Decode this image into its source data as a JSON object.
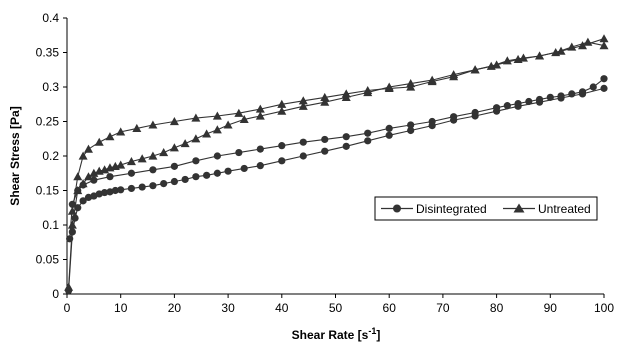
{
  "chart_data": {
    "type": "line",
    "xlabel": "Shear Rate [s",
    "xlabel_sup": "-1",
    "xlabel_end": "]",
    "ylabel": "Shear Stress [Pa]",
    "xlim": [
      0,
      100
    ],
    "ylim": [
      0,
      0.4
    ],
    "xticks": [
      "0",
      "10",
      "20",
      "30",
      "40",
      "50",
      "60",
      "70",
      "80",
      "90",
      "100"
    ],
    "yticks": [
      "0",
      "0.05",
      "0.1",
      "0.15",
      "0.2",
      "0.25",
      "0.3",
      "0.35",
      "0.4"
    ],
    "legend_position": "right-middle",
    "series": [
      {
        "name": "Disintegrated",
        "marker": "circle",
        "color": "#333333",
        "up": {
          "x": [
            0.3,
            1,
            1.5,
            2,
            3,
            4,
            5,
            6,
            7,
            8,
            9,
            10,
            12,
            14,
            16,
            18,
            20,
            22,
            24,
            26,
            28,
            30,
            33,
            36,
            40,
            44,
            48,
            52,
            56,
            60,
            64,
            68,
            72,
            76,
            80,
            84,
            88,
            92,
            96,
            100
          ],
          "y": [
            0.005,
            0.09,
            0.11,
            0.125,
            0.135,
            0.14,
            0.142,
            0.145,
            0.147,
            0.148,
            0.15,
            0.151,
            0.153,
            0.155,
            0.157,
            0.16,
            0.163,
            0.166,
            0.17,
            0.172,
            0.175,
            0.178,
            0.182,
            0.186,
            0.193,
            0.2,
            0.207,
            0.214,
            0.222,
            0.23,
            0.237,
            0.244,
            0.252,
            0.258,
            0.265,
            0.272,
            0.278,
            0.284,
            0.29,
            0.298
          ]
        },
        "down": {
          "x": [
            100,
            98,
            96,
            94,
            92,
            90,
            88,
            86,
            84,
            82,
            80,
            76,
            72,
            68,
            64,
            60,
            56,
            52,
            48,
            44,
            40,
            36,
            32,
            28,
            24,
            20,
            16,
            12,
            8,
            5,
            3,
            2,
            1,
            0.5
          ],
          "y": [
            0.312,
            0.3,
            0.293,
            0.29,
            0.287,
            0.285,
            0.282,
            0.279,
            0.276,
            0.273,
            0.27,
            0.263,
            0.257,
            0.25,
            0.245,
            0.24,
            0.233,
            0.228,
            0.224,
            0.22,
            0.215,
            0.21,
            0.205,
            0.2,
            0.193,
            0.185,
            0.18,
            0.175,
            0.17,
            0.165,
            0.158,
            0.15,
            0.13,
            0.08
          ]
        }
      },
      {
        "name": "Untreated",
        "marker": "triangle",
        "color": "#333333",
        "up": {
          "x": [
            0.3,
            1,
            2,
            3,
            4,
            5,
            6,
            7,
            8,
            9,
            10,
            12,
            14,
            16,
            18,
            20,
            22,
            24,
            26,
            28,
            30,
            33,
            36,
            40,
            44,
            48,
            52,
            56,
            60,
            64,
            68,
            72,
            76,
            80,
            84,
            88,
            92,
            96,
            100
          ],
          "y": [
            0.01,
            0.1,
            0.15,
            0.16,
            0.17,
            0.175,
            0.178,
            0.18,
            0.183,
            0.185,
            0.187,
            0.192,
            0.196,
            0.2,
            0.205,
            0.212,
            0.218,
            0.225,
            0.232,
            0.238,
            0.245,
            0.253,
            0.258,
            0.265,
            0.272,
            0.278,
            0.285,
            0.292,
            0.3,
            0.305,
            0.31,
            0.318,
            0.325,
            0.332,
            0.34,
            0.345,
            0.352,
            0.36,
            0.37
          ]
        },
        "down": {
          "x": [
            100,
            97,
            94,
            91,
            88,
            85,
            82,
            79,
            76,
            72,
            68,
            64,
            60,
            56,
            52,
            48,
            44,
            40,
            36,
            32,
            28,
            24,
            20,
            16,
            13,
            10,
            8,
            6,
            4,
            3,
            2,
            1
          ],
          "y": [
            0.36,
            0.365,
            0.358,
            0.35,
            0.345,
            0.342,
            0.338,
            0.33,
            0.325,
            0.315,
            0.308,
            0.3,
            0.298,
            0.295,
            0.29,
            0.285,
            0.28,
            0.275,
            0.268,
            0.262,
            0.258,
            0.255,
            0.25,
            0.245,
            0.24,
            0.235,
            0.228,
            0.22,
            0.21,
            0.2,
            0.17,
            0.12
          ]
        }
      }
    ]
  }
}
